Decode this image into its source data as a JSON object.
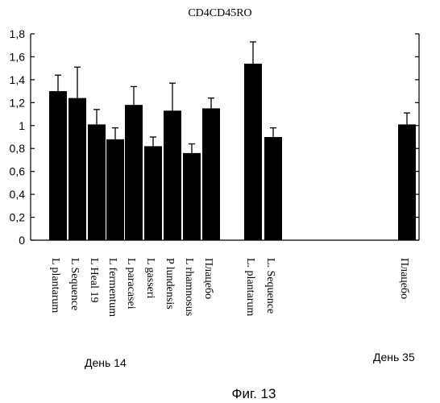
{
  "chart_data": {
    "type": "bar",
    "title": "CD4CD45RO",
    "caption": "Фиг. 13",
    "ylim": [
      0,
      1.8
    ],
    "yticks": [
      "0",
      "0,2",
      "0,4",
      "0,6",
      "0,8",
      "1",
      "1,2",
      "1,4",
      "1,6",
      "1,8"
    ],
    "grid": false,
    "legend": "none",
    "bar_color": "#000000",
    "categories": [
      "L plantarum",
      "L Sequence",
      "L Heal 19",
      "L fermentum",
      "L paracasei",
      "L gasseri",
      "P lundensis",
      "L rhamnosus",
      "Плацебо",
      "L. plantarum",
      "L. Sequence",
      "Плацебо"
    ],
    "category_labels": [
      "L plantarum",
      "L Sequence",
      "L Heal 19",
      "L fermentum",
      "L paracasei",
      "L gasseri",
      "P lundensis",
      "L rhamnosus",
      "Плацебо",
      "L. plantarum",
      "L. Sequence",
      "Плацебо"
    ],
    "values": [
      1.3,
      1.24,
      1.01,
      0.88,
      1.18,
      0.82,
      1.13,
      0.76,
      1.15,
      1.54,
      0.9,
      1.01
    ],
    "error_upper": [
      1.44,
      1.51,
      1.14,
      0.98,
      1.34,
      0.9,
      1.37,
      0.84,
      1.24,
      1.73,
      0.98,
      1.11
    ],
    "group_labels": [
      "День 14",
      "День 35"
    ]
  }
}
